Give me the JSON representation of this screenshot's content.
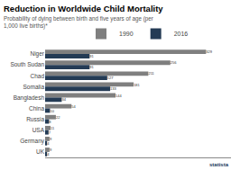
{
  "chart_data": {
    "type": "bar",
    "orientation": "horizontal",
    "title": "Reduction in Worldwide Child Mortality",
    "subtitle": "Probability of dying between birth and five years of age (per 1,000 live births)*",
    "categories": [
      "Niger",
      "South Sudan",
      "Chad",
      "Somalia",
      "Bangladesh",
      "China",
      "Russia",
      "USA",
      "Germany",
      "UK"
    ],
    "series": [
      {
        "name": "1990",
        "color": "#7f7f7f",
        "values": [
          329,
          256,
          211,
          181,
          144,
          54,
          22,
          11,
          9,
          9
        ]
      },
      {
        "name": "2016",
        "color": "#243b55",
        "values": [
          91,
          91,
          127,
          133,
          34,
          10,
          8,
          7,
          4,
          4
        ]
      }
    ],
    "xlim": [
      0,
      380
    ],
    "tick_labels": "y",
    "grid": false,
    "legend": "top",
    "data_labels": true,
    "annotations": [
      "statista"
    ]
  }
}
